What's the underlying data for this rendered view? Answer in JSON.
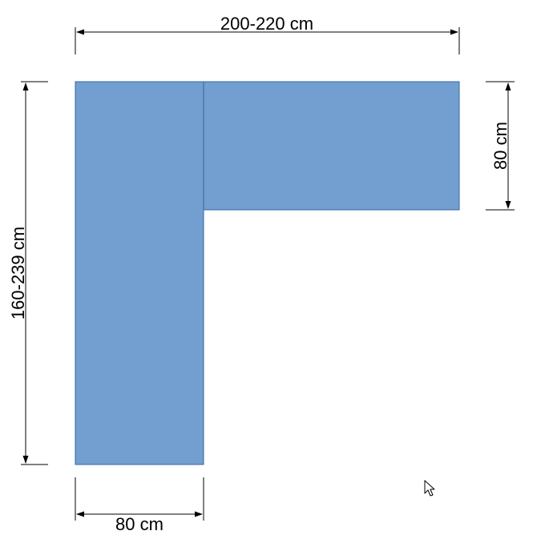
{
  "diagram": {
    "shape": "L-shaped desk",
    "fill_color": "#729fcf",
    "stroke_color": "#3465a4",
    "dimensions": {
      "top_width": "200-220 cm",
      "left_height": "160-239 cm",
      "right_depth": "80 cm",
      "bottom_depth": "80 cm"
    }
  },
  "cursor": {
    "icon": "mouse-pointer-icon"
  }
}
